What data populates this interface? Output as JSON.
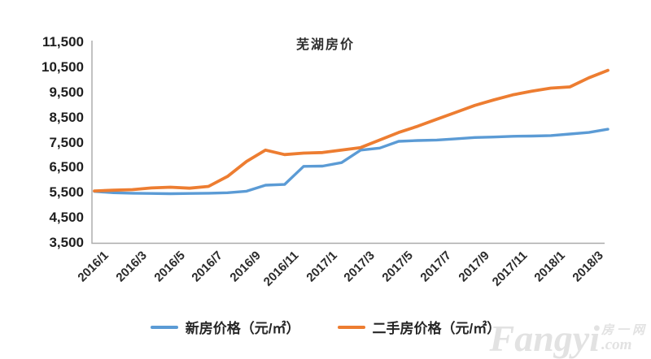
{
  "page": {
    "background": "#ffffff"
  },
  "watermark": {
    "brand": "Fangyi",
    "cn": "房一网",
    "domain": ".com"
  },
  "chart_data": {
    "type": "line",
    "title": "芜湖房价",
    "xlabel": "",
    "ylabel": "",
    "ylim": [
      3500,
      11500
    ],
    "ytick_step": 1000,
    "grid": false,
    "legend_position": "bottom",
    "axis_color": "#a9a9a9",
    "x": [
      "2016/1",
      "2016/2",
      "2016/3",
      "2016/4",
      "2016/5",
      "2016/6",
      "2016/7",
      "2016/8",
      "2016/9",
      "2016/10",
      "2016/11",
      "2016/12",
      "2017/1",
      "2017/2",
      "2017/3",
      "2017/4",
      "2017/5",
      "2017/6",
      "2017/7",
      "2017/8",
      "2017/9",
      "2017/10",
      "2017/11",
      "2017/12",
      "2018/1",
      "2018/2",
      "2018/3",
      "2018/4"
    ],
    "x_tick_labels": [
      "2016/1",
      "2016/3",
      "2016/5",
      "2016/7",
      "2016/9",
      "2016/11",
      "2017/1",
      "2017/3",
      "2017/5",
      "2017/7",
      "2017/9",
      "2017/11",
      "2018/1",
      "2018/3"
    ],
    "y_tick_labels": [
      "11,500",
      "10,500",
      "9,500",
      "8,500",
      "7,500",
      "6,500",
      "5,500",
      "4,500",
      "3,500"
    ],
    "series": [
      {
        "name": "新房价格（元/㎡）",
        "color": "#5b9bd5",
        "stroke_width": 3.4,
        "values": [
          5550,
          5500,
          5480,
          5470,
          5460,
          5470,
          5480,
          5500,
          5560,
          5800,
          5830,
          6550,
          6560,
          6700,
          7200,
          7280,
          7550,
          7580,
          7600,
          7650,
          7700,
          7720,
          7750,
          7760,
          7780,
          7840,
          7900,
          8030
        ]
      },
      {
        "name": "二手房价格（元/㎡）",
        "color": "#ed7d31",
        "stroke_width": 3.8,
        "values": [
          5570,
          5600,
          5620,
          5690,
          5720,
          5680,
          5750,
          6150,
          6750,
          7200,
          7020,
          7080,
          7100,
          7200,
          7300,
          7600,
          7900,
          8150,
          8430,
          8700,
          8980,
          9200,
          9400,
          9550,
          9670,
          9720,
          10080,
          10380
        ]
      }
    ]
  }
}
